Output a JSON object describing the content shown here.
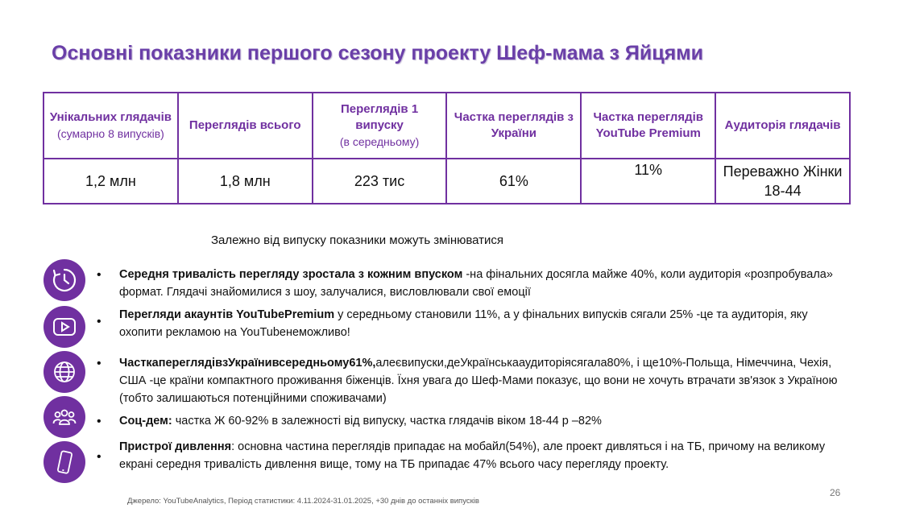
{
  "title": "Основні показники першого сезону проекту Шеф-мама з Яйцями",
  "table": {
    "headers": [
      {
        "main": "Унікальних глядачів",
        "sub": "(сумарно 8 випусків)"
      },
      {
        "main": "Переглядів всього",
        "sub": ""
      },
      {
        "main": "Переглядів 1 випуску",
        "sub": "(в середньому)"
      },
      {
        "main": "Частка переглядів з України",
        "sub": ""
      },
      {
        "main": "Частка переглядів YouTube Premium",
        "sub": ""
      },
      {
        "main": "Аудиторія глядачів",
        "sub": ""
      }
    ],
    "values": [
      "1,2 млн",
      "1,8 млн",
      "223 тис",
      "61%",
      "11%",
      "Переважно Жінки 18-44"
    ]
  },
  "note": "Залежно від випуску показники можуть змінюватися",
  "bullet_symbol": "•",
  "items": [
    {
      "icon": "clock-icon",
      "bold": "Середня тривалість перегляду зростала з кожним впуском",
      "text": " -на фінальних досягла майже 40%, коли аудиторія «розпробувала» формат. Глядачі знайомилися з шоу, залучалися, висловлювали свої емоції"
    },
    {
      "icon": "play-icon",
      "bold": "Перегляди акаунтів YouTubePremium",
      "text": " у середньому становили 11%, а у фінальних випусків сягали 25% -це та аудиторія, яку охопити рекламою на YouTubeнеможливо!"
    },
    {
      "icon": "globe-icon",
      "bold": "ЧасткапереглядівзУкраїнивсередньому61%,",
      "text": "алеєвипуски,деУкраїнськааудиторіясягала80%, і ще10%-Польща, Німеччина, Чехія, США -це країни компактного проживання біженців. Їхня увага до Шеф-Мами показує, що вони не хочуть втрачати зв'язок з Україною (тобто залишаються потенційними споживачами)"
    },
    {
      "icon": "people-icon",
      "bold": "Соц-дем:",
      "text": " частка Ж 60-92% в залежності від випуску, частка глядачів віком 18-44 р –82%"
    },
    {
      "icon": "phone-icon",
      "bold": "Пристрої дивлення",
      "text": ": основна частина переглядів припадає на мобайл(54%), але проект дивляться і на ТБ, причому на великому екрані середня тривалість дивлення вище, тому на ТБ припадає 47% всього часу перегляду проекту."
    }
  ],
  "source": "Джерело: YouTubeAnalytics, Період статистики: 4.11.2024-31.01.2025, +30 днів до останніх випусків",
  "page_number": "26",
  "colors": {
    "accent": "#7030a0",
    "title": "#6a3fa8"
  }
}
